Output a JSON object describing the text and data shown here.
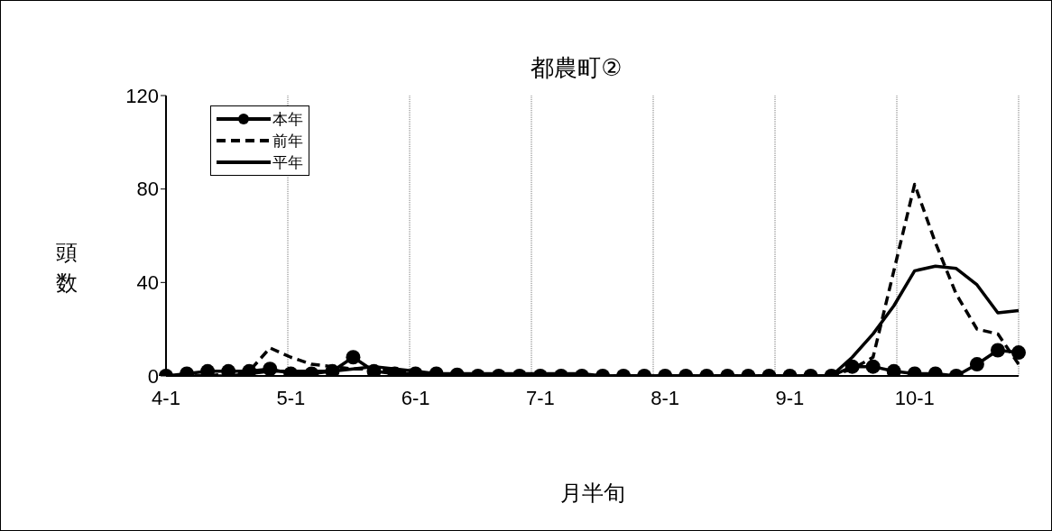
{
  "chart_data": {
    "type": "line",
    "title": "都農町②",
    "xlabel": "月半旬",
    "ylabel": "頭数",
    "categories": [
      "4-1",
      null,
      null,
      null,
      null,
      null,
      "5-1",
      null,
      null,
      null,
      null,
      null,
      "6-1",
      null,
      null,
      null,
      null,
      null,
      "7-1",
      null,
      null,
      null,
      null,
      null,
      "8-1",
      null,
      null,
      null,
      null,
      null,
      "9-1",
      null,
      null,
      null,
      null,
      null,
      "10-1",
      null,
      null,
      null,
      null,
      null
    ],
    "series": [
      {
        "name": "本年",
        "color": "#000000",
        "marker": "circle",
        "line_style": "solid",
        "values": [
          0,
          1,
          2,
          2,
          2,
          3,
          1,
          1,
          2,
          8,
          2,
          1,
          1,
          1,
          0.5,
          0,
          0,
          0,
          0,
          0,
          0,
          0,
          0,
          0,
          0,
          0,
          0,
          0,
          0,
          0,
          0,
          0,
          0,
          4,
          4,
          2,
          1,
          1,
          0,
          5,
          11,
          10
        ]
      },
      {
        "name": "前年",
        "color": "#000000",
        "marker": "none",
        "line_style": "dashed",
        "values": [
          0,
          0,
          0,
          1,
          2,
          12,
          8,
          5,
          4,
          3,
          3,
          2,
          1,
          1,
          0,
          0,
          0,
          0,
          0,
          0,
          0,
          0,
          0,
          0,
          0,
          0,
          0,
          0,
          0,
          0,
          0,
          0,
          0,
          3,
          8,
          45,
          82,
          57,
          35,
          20,
          18,
          5
        ]
      },
      {
        "name": "平年",
        "color": "#000000",
        "marker": "none",
        "line_style": "solid",
        "values": [
          0,
          0,
          0,
          0,
          1,
          2,
          2,
          2,
          2,
          3,
          4,
          3,
          2,
          1,
          1,
          1,
          1,
          1,
          1,
          1,
          1,
          0,
          0,
          0,
          0,
          0,
          0,
          0,
          0,
          0,
          0,
          0,
          0,
          8,
          18,
          30,
          45,
          47,
          46,
          39,
          27,
          28
        ]
      }
    ],
    "ylim": [
      0,
      120
    ],
    "yticks": [
      0,
      40,
      80,
      120
    ],
    "grid": "x",
    "legend": "top left"
  }
}
